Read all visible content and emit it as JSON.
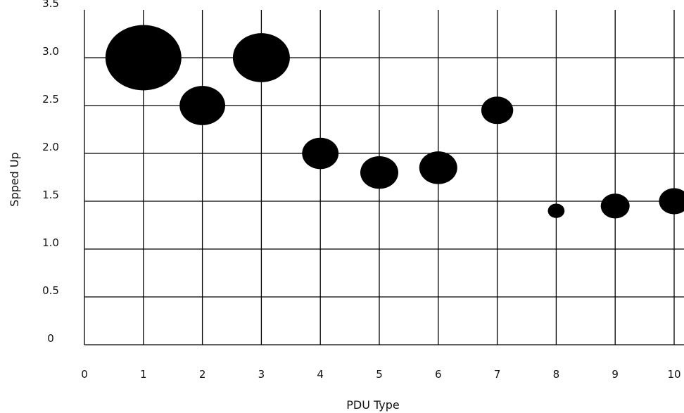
{
  "chart_data": {
    "type": "scatter",
    "variant": "bubble",
    "xlabel": "PDU Type",
    "ylabel": "Spped Up",
    "x_ticks": [
      "0",
      "1",
      "2",
      "3",
      "4",
      "5",
      "6",
      "7",
      "8",
      "9",
      "10"
    ],
    "y_ticks": [
      "0",
      "0.5",
      "1.0",
      "1.5",
      "2.0",
      "2.5",
      "3.0",
      "3.5"
    ],
    "xlim": [
      0,
      10
    ],
    "ylim": [
      0,
      3.5
    ],
    "grid": true,
    "legend": "none",
    "marker_color": "#000000",
    "points": [
      {
        "x": 1,
        "y": 3.0,
        "size": 1.0
      },
      {
        "x": 2,
        "y": 2.5,
        "size": 0.6
      },
      {
        "x": 3,
        "y": 3.0,
        "size": 0.75
      },
      {
        "x": 4,
        "y": 2.0,
        "size": 0.48
      },
      {
        "x": 5,
        "y": 1.8,
        "size": 0.5
      },
      {
        "x": 6,
        "y": 1.85,
        "size": 0.5
      },
      {
        "x": 7,
        "y": 2.45,
        "size": 0.42
      },
      {
        "x": 8,
        "y": 1.4,
        "size": 0.22
      },
      {
        "x": 9,
        "y": 1.45,
        "size": 0.38
      },
      {
        "x": 10,
        "y": 1.5,
        "size": 0.4
      }
    ]
  }
}
